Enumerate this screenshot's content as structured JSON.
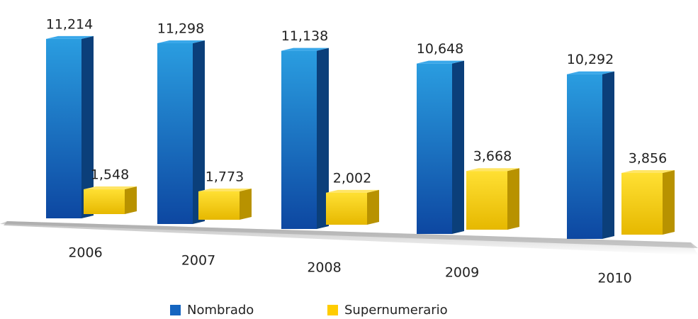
{
  "chart_data": {
    "type": "bar",
    "categories": [
      "2006",
      "2007",
      "2008",
      "2009",
      "2010"
    ],
    "series": [
      {
        "name": "Nombrado",
        "color": "#1565c0",
        "values": [
          11214,
          11298,
          11138,
          10648,
          10292
        ],
        "value_labels": [
          "11,214",
          "11,298",
          "11,138",
          "10,648",
          "10,292"
        ]
      },
      {
        "name": "Supernumerario",
        "color": "#ffcc00",
        "values": [
          1548,
          1773,
          2002,
          3668,
          3856
        ],
        "value_labels": [
          "1,548",
          "1,773",
          "2,002",
          "3,668",
          "3,856"
        ]
      }
    ],
    "legend": "bottom"
  }
}
